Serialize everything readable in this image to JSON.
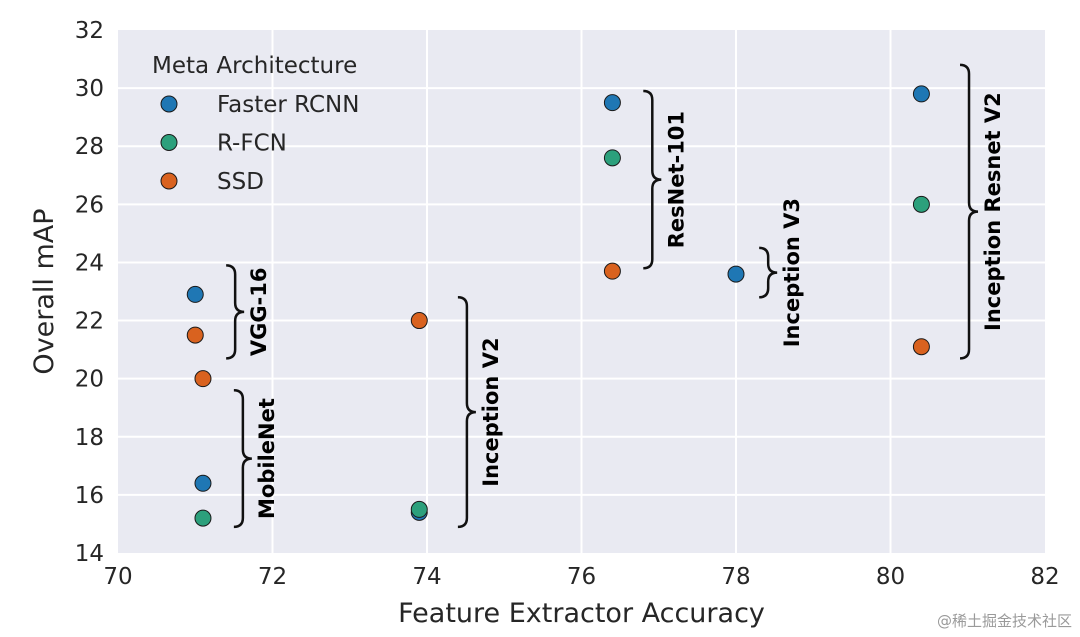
{
  "chart_data": {
    "type": "scatter",
    "title": "",
    "xlabel": "Feature Extractor Accuracy",
    "ylabel": "Overall mAP",
    "xlim": [
      70,
      82
    ],
    "ylim": [
      14,
      32
    ],
    "x_ticks": [
      "70",
      "72",
      "74",
      "76",
      "78",
      "80",
      "82"
    ],
    "y_ticks": [
      "14",
      "16",
      "18",
      "20",
      "22",
      "24",
      "26",
      "28",
      "30",
      "32"
    ],
    "grid": true,
    "background": "#e9eaf2",
    "legend": {
      "title": "Meta Architecture",
      "position": "top-left"
    },
    "series": [
      {
        "name": "Faster RCNN",
        "color": "#1f77b4",
        "points": [
          {
            "x": 71.0,
            "y": 22.9
          },
          {
            "x": 71.1,
            "y": 16.4
          },
          {
            "x": 73.9,
            "y": 15.4
          },
          {
            "x": 76.4,
            "y": 29.5
          },
          {
            "x": 78.0,
            "y": 23.6
          },
          {
            "x": 80.4,
            "y": 29.8
          }
        ]
      },
      {
        "name": "R-FCN",
        "color": "#2ca07c",
        "points": [
          {
            "x": 71.1,
            "y": 15.2
          },
          {
            "x": 73.9,
            "y": 15.5
          },
          {
            "x": 76.4,
            "y": 27.6
          },
          {
            "x": 80.4,
            "y": 26.0
          }
        ]
      },
      {
        "name": "SSD",
        "color": "#d9621f",
        "points": [
          {
            "x": 71.0,
            "y": 21.5
          },
          {
            "x": 71.1,
            "y": 20.0
          },
          {
            "x": 73.9,
            "y": 22.0
          },
          {
            "x": 76.4,
            "y": 23.7
          },
          {
            "x": 80.4,
            "y": 21.1
          }
        ]
      }
    ],
    "annotations": [
      {
        "label": "VGG-16",
        "x": 71.4,
        "y_range": [
          20.7,
          23.9
        ]
      },
      {
        "label": "MobileNet",
        "x": 71.5,
        "y_range": [
          14.9,
          19.6
        ]
      },
      {
        "label": "Inception V2",
        "x": 74.4,
        "y_range": [
          14.9,
          22.8
        ]
      },
      {
        "label": "ResNet-101",
        "x": 76.8,
        "y_range": [
          23.8,
          29.9
        ]
      },
      {
        "label": "Inception V3",
        "x": 78.3,
        "y_range": [
          22.8,
          24.5
        ]
      },
      {
        "label": "Inception Resnet V2",
        "x": 80.9,
        "y_range": [
          20.7,
          30.8
        ]
      }
    ]
  },
  "watermark": "@稀土掘金技术社区"
}
